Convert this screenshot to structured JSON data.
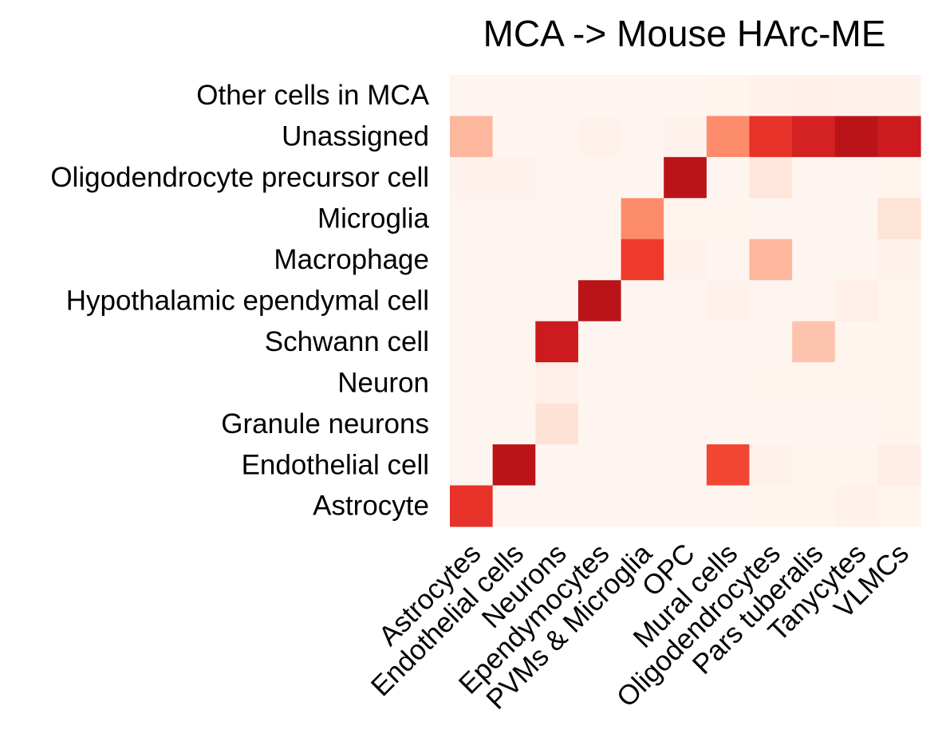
{
  "chart_data": {
    "type": "heatmap",
    "title": "MCA -> Mouse HArc-ME",
    "xlabel": "",
    "ylabel": "",
    "rows": [
      "Other cells in MCA",
      "Unassigned",
      "Oligodendrocyte precursor cell",
      "Microglia",
      "Macrophage",
      "Hypothalamic ependymal cell",
      "Schwann cell",
      "Neuron",
      "Granule neurons",
      "Endothelial cell",
      "Astrocyte"
    ],
    "columns": [
      "Astrocytes",
      "Endothelial cells",
      "Neurons",
      "Ependymocytes",
      "PVMs & Microglia",
      "OPC",
      "Mural cells",
      "Oligodendrocytes",
      "Pars tuberalis",
      "Tanycytes",
      "VLMCs"
    ],
    "values": [
      [
        0.0,
        0.0,
        0.0,
        0.0,
        0.0,
        0.0,
        0.01,
        0.02,
        0.03,
        0.02,
        0.02
      ],
      [
        0.3,
        0.0,
        0.0,
        0.02,
        0.0,
        0.02,
        0.45,
        0.75,
        0.82,
        0.92,
        0.85
      ],
      [
        0.02,
        0.02,
        0.0,
        0.0,
        0.0,
        0.92,
        0.0,
        0.1,
        0.0,
        0.0,
        0.01
      ],
      [
        0.0,
        0.0,
        0.0,
        0.0,
        0.45,
        0.01,
        0.01,
        0.0,
        0.0,
        0.0,
        0.12
      ],
      [
        0.0,
        0.0,
        0.0,
        0.0,
        0.72,
        0.02,
        0.0,
        0.3,
        0.0,
        0.0,
        0.02
      ],
      [
        0.0,
        0.0,
        0.0,
        0.92,
        0.0,
        0.0,
        0.02,
        0.0,
        0.0,
        0.04,
        0.01
      ],
      [
        0.0,
        0.0,
        0.85,
        0.0,
        0.0,
        0.0,
        0.0,
        0.0,
        0.25,
        0.01,
        0.01
      ],
      [
        0.0,
        0.0,
        0.04,
        0.0,
        0.0,
        0.0,
        0.0,
        0.01,
        0.01,
        0.01,
        0.01
      ],
      [
        0.0,
        0.0,
        0.13,
        0.0,
        0.0,
        0.0,
        0.0,
        0.0,
        0.0,
        0.0,
        0.01
      ],
      [
        0.0,
        0.92,
        0.0,
        0.0,
        0.0,
        0.0,
        0.68,
        0.02,
        0.01,
        0.01,
        0.05
      ],
      [
        0.75,
        0.0,
        0.0,
        0.0,
        0.0,
        0.0,
        0.0,
        0.01,
        0.01,
        0.02,
        0.01
      ]
    ],
    "value_range": [
      0,
      1
    ],
    "colormap": [
      "#fff5f0",
      "#fee0d2",
      "#fcbba1",
      "#fc9272",
      "#fb6a4a",
      "#ef3b2c",
      "#cb181d",
      "#a50f15"
    ],
    "colorbar": false,
    "grid": false
  }
}
